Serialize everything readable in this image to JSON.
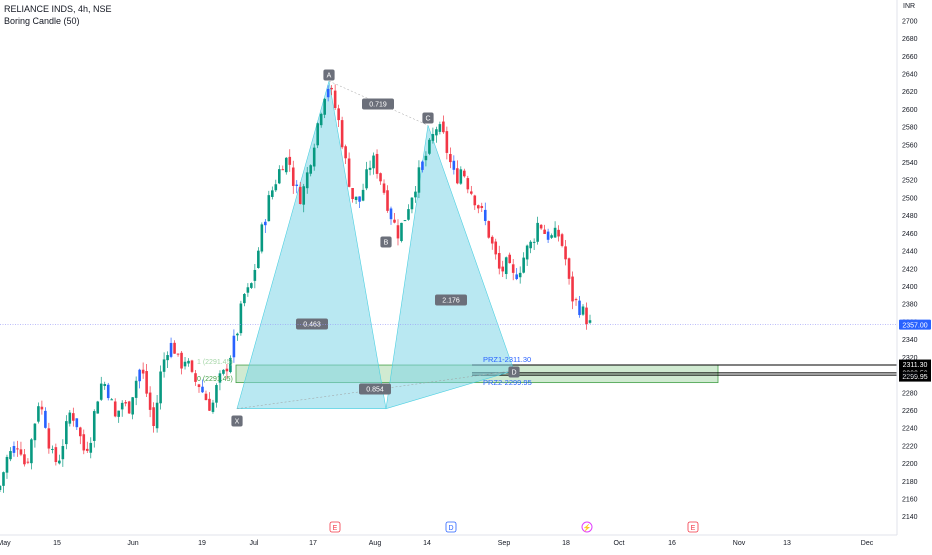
{
  "header": {
    "symbol_line": "RELIANCE INDS, 4h, NSE",
    "indicator_line": "Boring Candle (50)",
    "currency": "INR"
  },
  "chart_data": {
    "type": "candlestick",
    "title": "RELIANCE INDS, 4h, NSE",
    "ylim": [
      2130,
      2705
    ],
    "y_ticks": [
      2140,
      2160,
      2180,
      2200,
      2220,
      2240,
      2260,
      2280,
      2300,
      2320,
      2340,
      2360,
      2380,
      2400,
      2420,
      2440,
      2460,
      2480,
      2500,
      2520,
      2540,
      2560,
      2580,
      2600,
      2620,
      2640,
      2660,
      2680,
      2700
    ],
    "x_ticks": [
      "May",
      "15",
      "Jun",
      "19",
      "Jul",
      "17",
      "Aug",
      "14",
      "Sep",
      "18",
      "Oct",
      "16",
      "Nov",
      "13",
      "Dec"
    ],
    "last_price": "2357.00",
    "close_path": [
      2175,
      2205,
      2215,
      2225,
      2195,
      2230,
      2270,
      2250,
      2210,
      2200,
      2230,
      2260,
      2245,
      2215,
      2225,
      2270,
      2295,
      2280,
      2250,
      2270,
      2260,
      2290,
      2310,
      2275,
      2240,
      2300,
      2330,
      2335,
      2310,
      2320,
      2295,
      2290,
      2275,
      2262,
      2292,
      2302,
      2325,
      2350,
      2390,
      2395,
      2430,
      2470,
      2500,
      2520,
      2540,
      2545,
      2510,
      2500,
      2530,
      2565,
      2600,
      2630,
      2610,
      2580,
      2535,
      2500,
      2495,
      2520,
      2545,
      2530,
      2505,
      2480,
      2460,
      2475,
      2500,
      2520,
      2540,
      2558,
      2580,
      2572,
      2545,
      2520,
      2535,
      2515,
      2500,
      2485,
      2465,
      2440,
      2415,
      2425,
      2410,
      2420,
      2440,
      2450,
      2475,
      2460,
      2455,
      2460,
      2440,
      2390,
      2380,
      2370,
      2357
    ],
    "candle_colors": {
      "up": "#089981",
      "down": "#f23645",
      "indicator": "#2962ff"
    },
    "pattern": {
      "points": {
        "X": 2262,
        "A": 2632,
        "B": 2262,
        "C": 2582,
        "D": 2305
      },
      "labels": [
        "X",
        "A",
        "B",
        "C",
        "D"
      ],
      "ratios": [
        "0.719",
        "0.463",
        "2.176",
        "0.854"
      ],
      "fill_color": "#7fd6e8"
    },
    "prz": {
      "label1": "PRZ1-2311.30",
      "label2": "PRZ2-2299.95",
      "fib_label": "0 (2291.45)",
      "fib_label_faint": "1 (2291.45)",
      "zone": [
        2291.45,
        2311.3
      ]
    },
    "price_labels": [
      "2311.30",
      "2302.50",
      "2299.95"
    ],
    "events": [
      "E",
      "D",
      "⚡",
      "E"
    ]
  }
}
